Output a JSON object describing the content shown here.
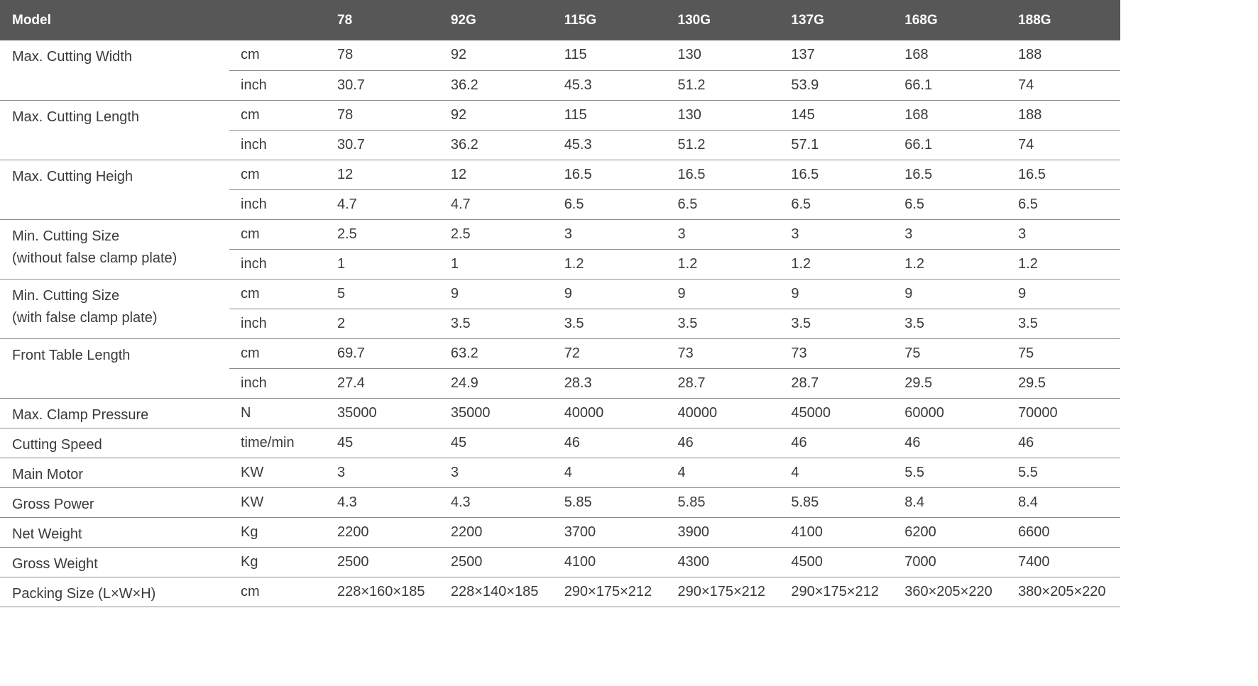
{
  "header": {
    "model_label": "Model",
    "unit_label": "",
    "models": [
      "78",
      "92G",
      "115G",
      "130G",
      "137G",
      "168G",
      "188G"
    ]
  },
  "rows": [
    {
      "label": "Max. Cutting Width",
      "label_sub": "",
      "lines": [
        {
          "unit": "cm",
          "values": [
            "78",
            "92",
            "115",
            "130",
            "137",
            "168",
            "188"
          ]
        },
        {
          "unit": "inch",
          "values": [
            "30.7",
            "36.2",
            "45.3",
            "51.2",
            "53.9",
            "66.1",
            "74"
          ]
        }
      ]
    },
    {
      "label": "Max. Cutting Length",
      "label_sub": "",
      "lines": [
        {
          "unit": "cm",
          "values": [
            "78",
            "92",
            "115",
            "130",
            "145",
            "168",
            "188"
          ]
        },
        {
          "unit": "inch",
          "values": [
            "30.7",
            "36.2",
            "45.3",
            "51.2",
            "57.1",
            "66.1",
            "74"
          ]
        }
      ]
    },
    {
      "label": "Max. Cutting Heigh",
      "label_sub": "",
      "lines": [
        {
          "unit": "cm",
          "values": [
            "12",
            "12",
            "16.5",
            "16.5",
            "16.5",
            "16.5",
            "16.5"
          ]
        },
        {
          "unit": "inch",
          "values": [
            "4.7",
            "4.7",
            "6.5",
            "6.5",
            "6.5",
            "6.5",
            "6.5"
          ]
        }
      ]
    },
    {
      "label": "Min. Cutting Size",
      "label_sub": "(without false clamp plate)",
      "lines": [
        {
          "unit": "cm",
          "values": [
            "2.5",
            "2.5",
            "3",
            "3",
            "3",
            "3",
            "3"
          ]
        },
        {
          "unit": "inch",
          "values": [
            "1",
            "1",
            "1.2",
            "1.2",
            "1.2",
            "1.2",
            "1.2"
          ]
        }
      ]
    },
    {
      "label": "Min. Cutting Size",
      "label_sub": "(with false clamp plate)",
      "lines": [
        {
          "unit": "cm",
          "values": [
            "5",
            "9",
            "9",
            "9",
            "9",
            "9",
            "9"
          ]
        },
        {
          "unit": "inch",
          "values": [
            "2",
            "3.5",
            "3.5",
            "3.5",
            "3.5",
            "3.5",
            "3.5"
          ]
        }
      ]
    },
    {
      "label": "Front Table Length",
      "label_sub": "",
      "lines": [
        {
          "unit": "cm",
          "values": [
            "69.7",
            "63.2",
            "72",
            "73",
            "73",
            "75",
            "75"
          ]
        },
        {
          "unit": "inch",
          "values": [
            "27.4",
            "24.9",
            "28.3",
            "28.7",
            "28.7",
            "29.5",
            "29.5"
          ]
        }
      ]
    },
    {
      "label": "Max. Clamp Pressure",
      "label_sub": "",
      "lines": [
        {
          "unit": "N",
          "values": [
            "35000",
            "35000",
            "40000",
            "40000",
            "45000",
            "60000",
            "70000"
          ]
        }
      ]
    },
    {
      "label": "Cutting Speed",
      "label_sub": "",
      "lines": [
        {
          "unit": "time/min",
          "values": [
            "45",
            "45",
            "46",
            "46",
            "46",
            "46",
            "46"
          ]
        }
      ]
    },
    {
      "label": "Main Motor",
      "label_sub": "",
      "lines": [
        {
          "unit": "KW",
          "values": [
            "3",
            "3",
            "4",
            "4",
            "4",
            "5.5",
            "5.5"
          ]
        }
      ]
    },
    {
      "label": "Gross Power",
      "label_sub": "",
      "lines": [
        {
          "unit": "KW",
          "values": [
            "4.3",
            "4.3",
            "5.85",
            "5.85",
            "5.85",
            "8.4",
            "8.4"
          ]
        }
      ]
    },
    {
      "label": "Net Weight",
      "label_sub": "",
      "lines": [
        {
          "unit": "Kg",
          "values": [
            "2200",
            "2200",
            "3700",
            "3900",
            "4100",
            "6200",
            "6600"
          ]
        }
      ]
    },
    {
      "label": "Gross Weight",
      "label_sub": "",
      "lines": [
        {
          "unit": "Kg",
          "values": [
            "2500",
            "2500",
            "4100",
            "4300",
            "4500",
            "7000",
            "7400"
          ]
        }
      ]
    },
    {
      "label": "Packing Size (L×W×H)",
      "label_sub": "",
      "lines": [
        {
          "unit": "cm",
          "values": [
            "228×160×185",
            "228×140×185",
            "290×175×212",
            "290×175×212",
            "290×175×212",
            "360×205×220",
            "380×205×220"
          ]
        }
      ]
    }
  ],
  "colors": {
    "header_bg": "#575757",
    "header_text": "#ffffff",
    "body_text": "#3a3a3a",
    "rule": "#8c8c8c"
  }
}
